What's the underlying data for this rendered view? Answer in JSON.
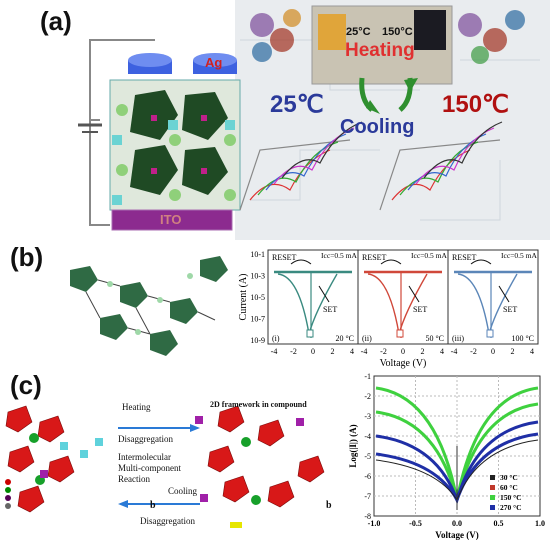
{
  "panel_a": {
    "label": "(a)",
    "electrode_label": "Ag",
    "substrate_label": "ITO",
    "photo_temp_left": "25°C",
    "photo_temp_right": "150°C",
    "heating": "Heating",
    "cooling": "Cooling",
    "temp_low": "25℃",
    "temp_high": "150℃"
  },
  "panel_b": {
    "label": "(b)",
    "y_axis_label": "Current (A)",
    "x_axis_label": "Voltage (V)",
    "y_ticks": [
      "10-1",
      "10-3",
      "10-5",
      "10-7",
      "10-9"
    ],
    "x_ticks": [
      "-4",
      "-2",
      "0",
      "2",
      "4"
    ],
    "subplots": [
      {
        "tag": "(i)",
        "temp": "20 °C",
        "reset": "RESET",
        "set": "SET",
        "icc": "Icc=0.5 mA",
        "color": "#3a8a80"
      },
      {
        "tag": "(ii)",
        "temp": "50 °C",
        "reset": "RESET",
        "set": "SET",
        "icc": "Icc=0.5 mA",
        "color": "#d0483a"
      },
      {
        "tag": "(iii)",
        "temp": "100 °C",
        "reset": "RESET",
        "set": "SET",
        "icc": "Icc=0.5 mA",
        "color": "#5b86b8"
      }
    ]
  },
  "panel_c": {
    "label": "(c)",
    "heating": "Heating",
    "disaggregation_top": "Disaggregation",
    "framework": "2D framework in compound",
    "reaction_l1": "Intermolecular",
    "reaction_l2": "Multi-component",
    "reaction_l3": "Reaction",
    "cooling": "Cooling",
    "disaggregation_bottom": "Disaggregation",
    "axis_b": "b",
    "chart": {
      "y_axis_label": "Log(|I|) (A)",
      "x_axis_label": "Voltage (V)",
      "y_ticks": [
        "-1",
        "-2",
        "-3",
        "-4",
        "-5",
        "-6",
        "-7",
        "-8"
      ],
      "x_ticks": [
        "-1.0",
        "-0.5",
        "0.0",
        "0.5",
        "1.0"
      ],
      "legend": [
        {
          "label": "30 °C",
          "color": "#222222"
        },
        {
          "label": "60 °C",
          "color": "#c0392b"
        },
        {
          "label": "150 °C",
          "color": "#3fd13f"
        },
        {
          "label": "270 °C",
          "color": "#1f2fa6"
        }
      ]
    }
  }
}
